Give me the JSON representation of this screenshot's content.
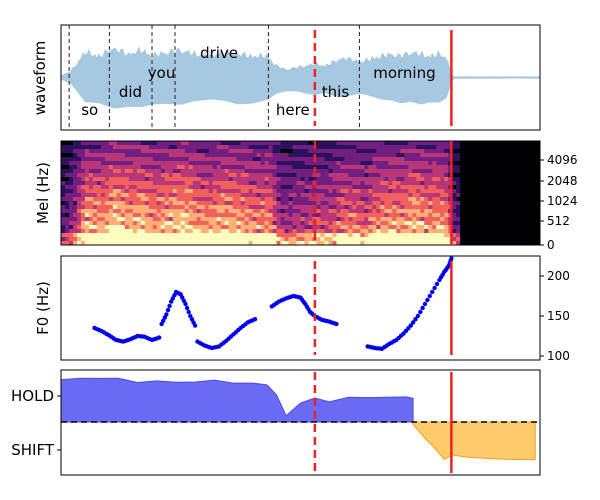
{
  "colors": {
    "waveform": "#a6c8e0",
    "f0_points": "#0000ee",
    "hold_fill": "#6a6af5",
    "hold_line": "#4a4ae8",
    "shift_fill": "#ffca6a",
    "shift_line": "#f0a020",
    "marker_red": "#ee2222",
    "word_boundary": "#222222"
  },
  "markers": {
    "dashed_red_time": 0.53,
    "solid_red_time": 0.815,
    "note": ""
  },
  "chart_data": [
    {
      "type": "area",
      "panel": "waveform",
      "ylabel": "waveform",
      "x_range": [
        0,
        1
      ],
      "amplitude_range": [
        -1,
        1
      ],
      "envelope": {
        "x": [
          0.0,
          0.02,
          0.05,
          0.08,
          0.11,
          0.14,
          0.17,
          0.19,
          0.22,
          0.25,
          0.28,
          0.31,
          0.34,
          0.37,
          0.4,
          0.43,
          0.45,
          0.47,
          0.49,
          0.51,
          0.53,
          0.55,
          0.57,
          0.59,
          0.61,
          0.63,
          0.65,
          0.67,
          0.69,
          0.71,
          0.73,
          0.75,
          0.77,
          0.79,
          0.805,
          0.815,
          0.82,
          0.85,
          0.9,
          0.95,
          1.0
        ],
        "upper": [
          0.05,
          0.15,
          0.65,
          0.55,
          0.75,
          0.6,
          0.7,
          0.55,
          0.65,
          0.7,
          0.6,
          0.55,
          0.65,
          0.6,
          0.55,
          0.55,
          0.3,
          0.2,
          0.25,
          0.3,
          0.35,
          0.3,
          0.4,
          0.5,
          0.45,
          0.4,
          0.5,
          0.55,
          0.6,
          0.55,
          0.65,
          0.6,
          0.55,
          0.6,
          0.5,
          0.1,
          0.02,
          0.02,
          0.02,
          0.02,
          0.02
        ],
        "lower": [
          -0.05,
          -0.15,
          -0.6,
          -0.6,
          -0.7,
          -0.65,
          -0.65,
          -0.6,
          -0.6,
          -0.65,
          -0.6,
          -0.6,
          -0.6,
          -0.65,
          -0.6,
          -0.5,
          -0.35,
          -0.3,
          -0.3,
          -0.35,
          -0.4,
          -0.35,
          -0.45,
          -0.5,
          -0.45,
          -0.45,
          -0.5,
          -0.55,
          -0.55,
          -0.6,
          -0.55,
          -0.6,
          -0.55,
          -0.55,
          -0.45,
          -0.1,
          -0.02,
          -0.02,
          -0.02,
          -0.02,
          -0.02
        ]
      },
      "word_boundaries": [
        0.017,
        0.101,
        0.19,
        0.238,
        0.433,
        0.623
      ],
      "words": [
        {
          "text": "so",
          "x": 0.06,
          "pos": "low"
        },
        {
          "text": "did",
          "x": 0.145,
          "pos": "mid"
        },
        {
          "text": "you",
          "x": 0.21,
          "pos": "high"
        },
        {
          "text": "drive",
          "x": 0.33,
          "pos": "top"
        },
        {
          "text": "here",
          "x": 0.484,
          "pos": "low"
        },
        {
          "text": "this",
          "x": 0.573,
          "pos": "mid"
        },
        {
          "text": "morning",
          "x": 0.717,
          "pos": "high"
        }
      ]
    },
    {
      "type": "heatmap",
      "panel": "mel spectrogram",
      "ylabel": "Mel (Hz)",
      "y_ticks": [
        "0",
        "512",
        "1024",
        "2048",
        "4096"
      ],
      "silence_after": 0.825,
      "colormap": [
        "#000004",
        "#2c115f",
        "#721f81",
        "#b73779",
        "#f1605d",
        "#feb078",
        "#fcfdbf"
      ]
    },
    {
      "type": "scatter",
      "panel": "pitch",
      "ylabel": "F0 (Hz)",
      "y_ticks": [
        100,
        150,
        200
      ],
      "ylim": [
        95,
        225
      ],
      "segments": [
        {
          "x": [
            0.07,
            0.085,
            0.1,
            0.115,
            0.13,
            0.145,
            0.16,
            0.175,
            0.19,
            0.205
          ],
          "y": [
            135,
            131,
            126,
            120,
            118,
            121,
            125,
            124,
            120,
            123
          ]
        },
        {
          "x": [
            0.21,
            0.22,
            0.23,
            0.24,
            0.25,
            0.26,
            0.27,
            0.28
          ],
          "y": [
            140,
            152,
            168,
            180,
            177,
            165,
            150,
            138
          ]
        },
        {
          "x": [
            0.285,
            0.3,
            0.315,
            0.33,
            0.345,
            0.36,
            0.375,
            0.39,
            0.405
          ],
          "y": [
            118,
            113,
            110,
            112,
            119,
            127,
            135,
            142,
            146
          ]
        },
        {
          "x": [
            0.44,
            0.455,
            0.47,
            0.485,
            0.5,
            0.51,
            0.52,
            0.53,
            0.545,
            0.56,
            0.575
          ],
          "y": [
            162,
            168,
            172,
            175,
            173,
            165,
            155,
            150,
            145,
            143,
            140
          ]
        },
        {
          "x": [
            0.64,
            0.655,
            0.67,
            0.685,
            0.7,
            0.715,
            0.73,
            0.745,
            0.76,
            0.775,
            0.79,
            0.8,
            0.81,
            0.815
          ],
          "y": [
            112,
            110,
            109,
            115,
            120,
            128,
            138,
            150,
            165,
            180,
            195,
            205,
            213,
            222
          ]
        }
      ]
    },
    {
      "type": "area",
      "panel": "turn-taking",
      "y_ticks": [
        "HOLD",
        "SHIFT"
      ],
      "ylim": [
        -1,
        1
      ],
      "hold": {
        "x": [
          0.0,
          0.04,
          0.08,
          0.12,
          0.16,
          0.2,
          0.24,
          0.28,
          0.32,
          0.36,
          0.4,
          0.43,
          0.45,
          0.47,
          0.5,
          0.53,
          0.56,
          0.6,
          0.64,
          0.68,
          0.72,
          0.735
        ],
        "y": [
          0.9,
          0.92,
          0.95,
          0.9,
          0.87,
          0.85,
          0.86,
          0.85,
          0.88,
          0.85,
          0.8,
          0.82,
          0.55,
          0.15,
          0.4,
          0.5,
          0.45,
          0.5,
          0.55,
          0.5,
          0.55,
          0.5
        ]
      },
      "shift": {
        "x": [
          0.735,
          0.76,
          0.78,
          0.8,
          0.815,
          0.85,
          0.9,
          0.95,
          0.99
        ],
        "y": [
          -0.05,
          -0.35,
          -0.55,
          -0.8,
          -0.7,
          -0.75,
          -0.78,
          -0.8,
          -0.8
        ]
      }
    }
  ]
}
